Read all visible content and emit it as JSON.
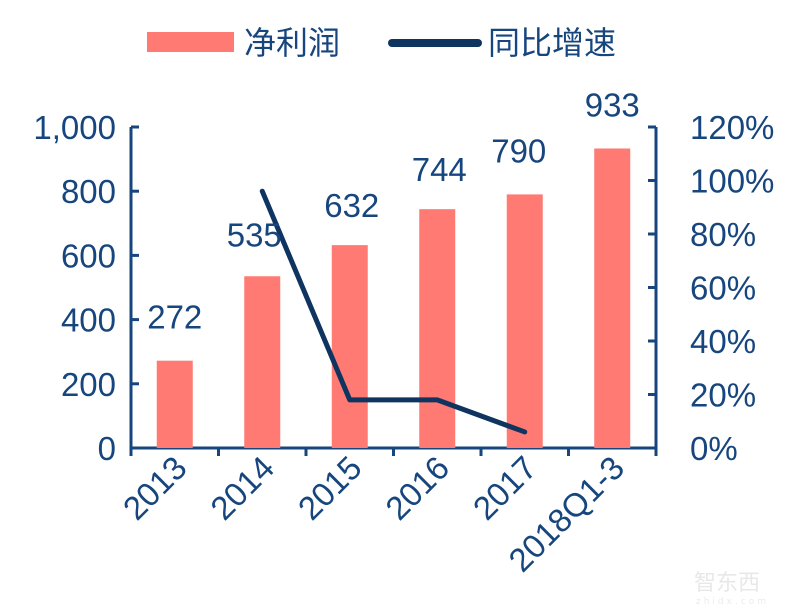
{
  "chart_data": {
    "type": "bar+line",
    "title": "",
    "categories": [
      "2013",
      "2014",
      "2015",
      "2016",
      "2017",
      "2018Q1-3"
    ],
    "series": [
      {
        "name": "净利润",
        "type": "bar",
        "axis": "left",
        "color": "#FF7A73",
        "values": [
          272,
          535,
          632,
          744,
          790,
          933
        ],
        "labels": [
          "272",
          "535",
          "632",
          "744",
          "790",
          "933"
        ]
      },
      {
        "name": "同比增速",
        "type": "line",
        "axis": "right",
        "color": "#0F3460",
        "values": [
          null,
          96,
          18,
          18,
          6,
          null
        ]
      }
    ],
    "left_axis": {
      "range": [
        0,
        1000
      ],
      "ticks": [
        0,
        200,
        400,
        600,
        800,
        1000
      ],
      "tick_labels": [
        "0",
        "200",
        "400",
        "600",
        "800",
        "1,000"
      ]
    },
    "right_axis": {
      "range": [
        0,
        120
      ],
      "ticks": [
        0,
        20,
        40,
        60,
        80,
        100,
        120
      ],
      "tick_labels": [
        "0%",
        "20%",
        "40%",
        "60%",
        "80%",
        "100%",
        "120%"
      ]
    },
    "xlabel": "",
    "ylabel": "",
    "grid": false,
    "legend_position": "top"
  },
  "legend": {
    "bar_label": "净利润",
    "line_label": "同比增速"
  },
  "watermark": {
    "text": "智东西",
    "sub": "zhidx.com"
  },
  "colors": {
    "bar": "#FF7A73",
    "line": "#0F3460",
    "axis": "#17467e",
    "text": "#17467e"
  }
}
